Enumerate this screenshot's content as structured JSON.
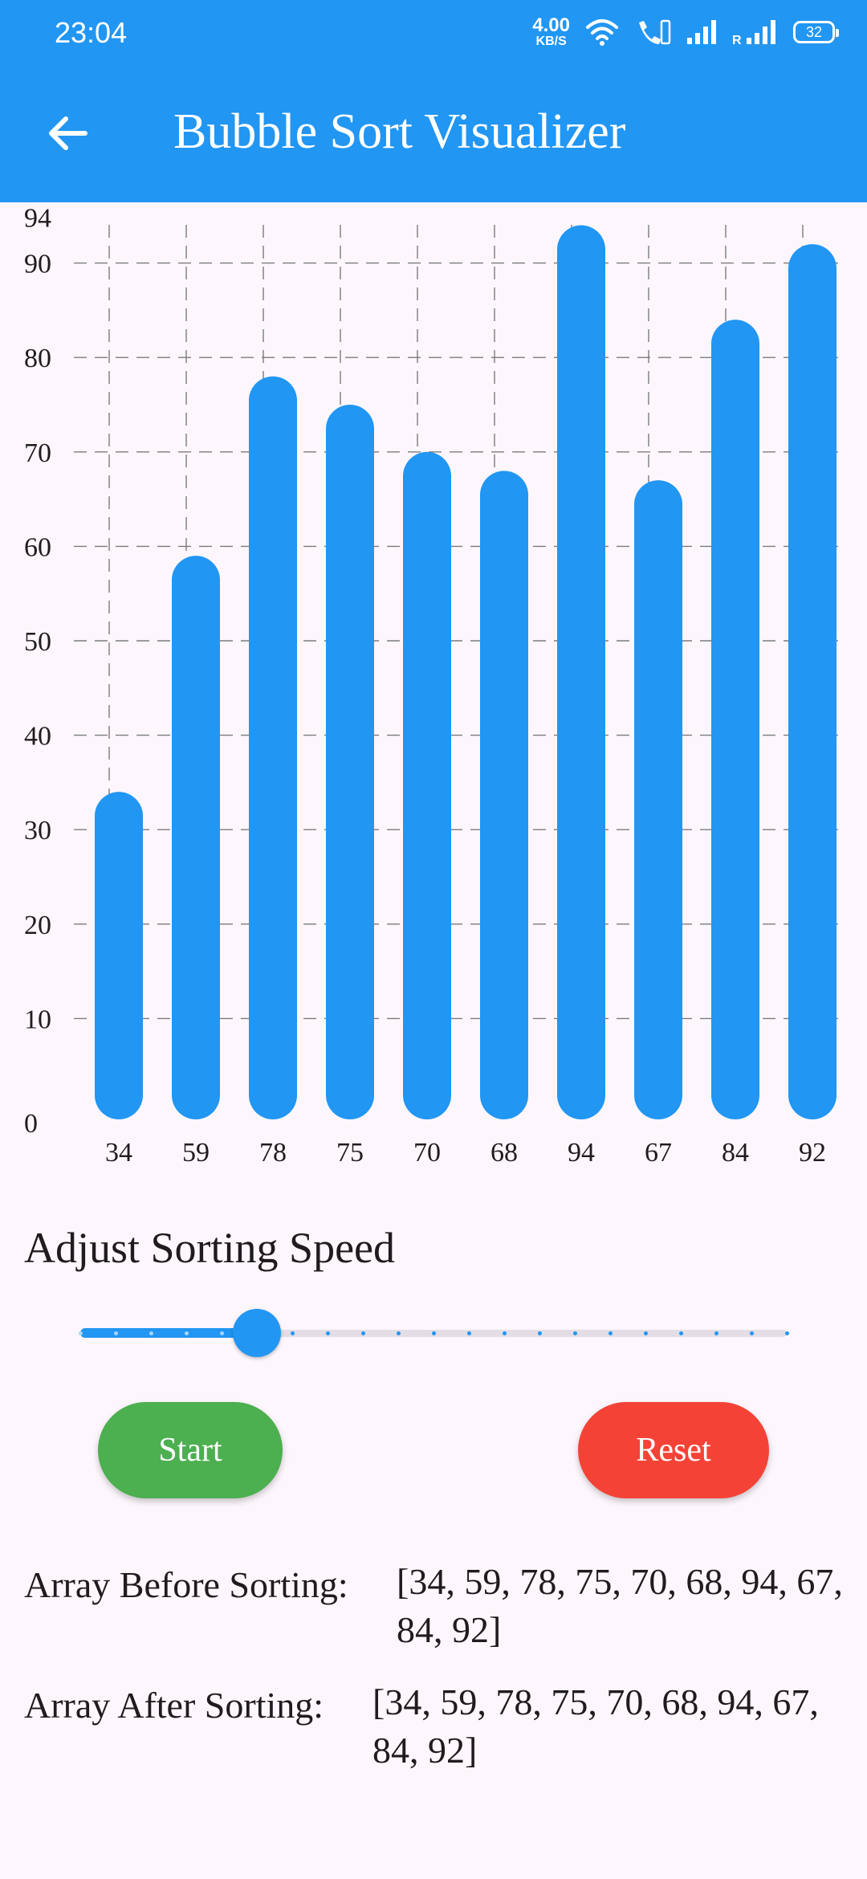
{
  "status_bar": {
    "time": "23:04",
    "net_speed_value": "4.00",
    "net_speed_unit": "KB/S",
    "roaming_label": "R",
    "battery": "32"
  },
  "app_bar": {
    "title": "Bubble Sort Visualizer",
    "back_icon": "arrow-back-icon"
  },
  "chart_data": {
    "type": "bar",
    "categories": [
      "34",
      "59",
      "78",
      "75",
      "70",
      "68",
      "94",
      "67",
      "84",
      "92"
    ],
    "values": [
      34,
      59,
      78,
      75,
      70,
      68,
      94,
      67,
      84,
      92
    ],
    "y_ticks": [
      "0",
      "10",
      "20",
      "30",
      "40",
      "50",
      "60",
      "70",
      "80",
      "90",
      "94"
    ],
    "ylim": [
      0,
      94
    ],
    "grid": true,
    "bar_color": "#2196f3"
  },
  "speed": {
    "label": "Adjust Sorting Speed",
    "divisions": 20,
    "value_fraction": 0.25
  },
  "buttons": {
    "start": "Start",
    "reset": "Reset",
    "start_color": "#4caf50",
    "reset_color": "#f44336"
  },
  "arrays": {
    "before_label": "Array Before Sorting:",
    "before_value": "[34, 59, 78, 75, 70, 68, 94, 67, 84, 92]",
    "after_label": "Array After Sorting:",
    "after_value": "[34, 59, 78, 75, 70, 68, 94, 67, 84, 92]"
  },
  "colors": {
    "primary": "#2196f3",
    "background": "#fdf7fd"
  }
}
